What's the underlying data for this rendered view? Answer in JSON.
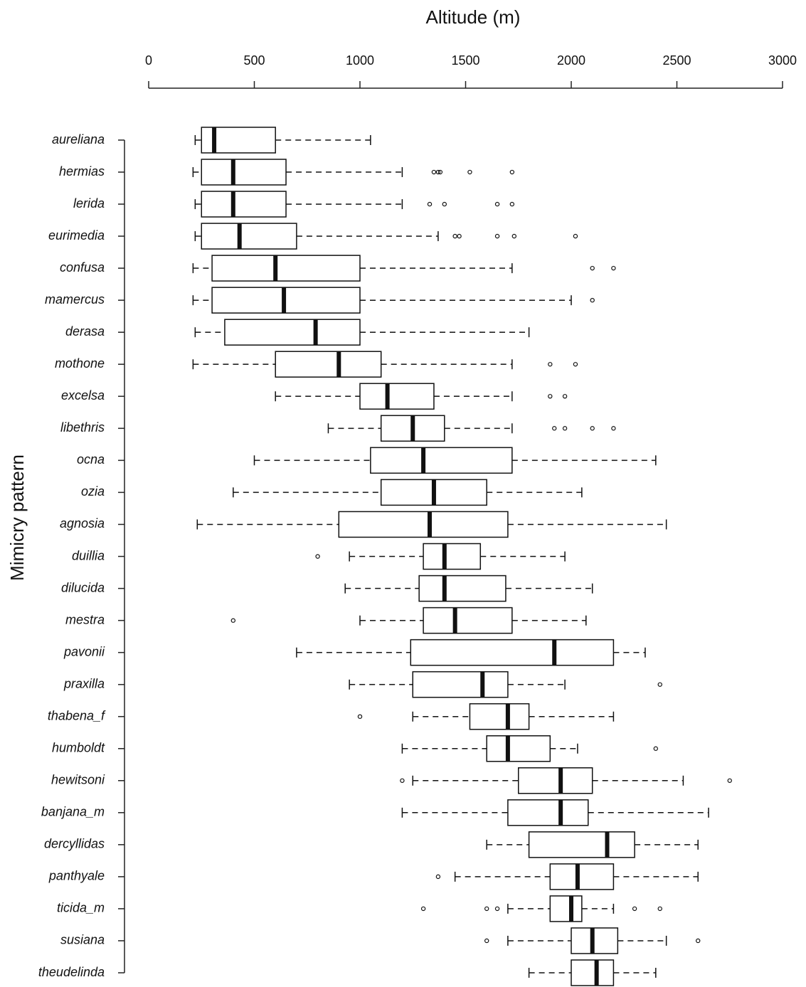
{
  "chart_data": {
    "type": "boxplot",
    "xlabel": "Altitude (m)",
    "ylabel": "Mimicry pattern",
    "xlim": [
      0,
      3000
    ],
    "xticks": [
      0,
      500,
      1000,
      1500,
      2000,
      2500,
      3000
    ],
    "categories": [
      "aureliana",
      "hermias",
      "lerida",
      "eurimedia",
      "confusa",
      "mamercus",
      "derasa",
      "mothone",
      "excelsa",
      "libethris",
      "ocna",
      "ozia",
      "agnosia",
      "duillia",
      "dilucida",
      "mestra",
      "pavonii",
      "praxilla",
      "thabena_f",
      "humboldt",
      "hewitsoni",
      "banjana_m",
      "dercyllidas",
      "panthyale",
      "ticida_m",
      "susiana",
      "theudelinda"
    ],
    "boxes": [
      {
        "low": 220,
        "q1": 250,
        "median": 310,
        "q3": 600,
        "high": 1050,
        "outliers": []
      },
      {
        "low": 210,
        "q1": 250,
        "median": 400,
        "q3": 650,
        "high": 1200,
        "outliers": [
          1350,
          1370,
          1380,
          1520,
          1720
        ]
      },
      {
        "low": 220,
        "q1": 250,
        "median": 400,
        "q3": 650,
        "high": 1200,
        "outliers": [
          1330,
          1400,
          1650,
          1720
        ]
      },
      {
        "low": 220,
        "q1": 250,
        "median": 430,
        "q3": 700,
        "high": 1370,
        "outliers": [
          1450,
          1470,
          1650,
          1730,
          2020
        ]
      },
      {
        "low": 210,
        "q1": 300,
        "median": 600,
        "q3": 1000,
        "high": 1720,
        "outliers": [
          2100,
          2200
        ]
      },
      {
        "low": 210,
        "q1": 300,
        "median": 640,
        "q3": 1000,
        "high": 2000,
        "outliers": [
          2100
        ]
      },
      {
        "low": 220,
        "q1": 360,
        "median": 790,
        "q3": 1000,
        "high": 1800,
        "outliers": []
      },
      {
        "low": 210,
        "q1": 600,
        "median": 900,
        "q3": 1100,
        "high": 1720,
        "outliers": [
          1900,
          2020
        ]
      },
      {
        "low": 600,
        "q1": 1000,
        "median": 1130,
        "q3": 1350,
        "high": 1720,
        "outliers": [
          1900,
          1970
        ]
      },
      {
        "low": 850,
        "q1": 1100,
        "median": 1250,
        "q3": 1400,
        "high": 1720,
        "outliers": [
          1920,
          1970,
          2100,
          2200
        ]
      },
      {
        "low": 500,
        "q1": 1050,
        "median": 1300,
        "q3": 1720,
        "high": 2400,
        "outliers": []
      },
      {
        "low": 400,
        "q1": 1100,
        "median": 1350,
        "q3": 1600,
        "high": 2050,
        "outliers": []
      },
      {
        "low": 230,
        "q1": 900,
        "median": 1330,
        "q3": 1700,
        "high": 2450,
        "outliers": []
      },
      {
        "low": 950,
        "q1": 1300,
        "median": 1400,
        "q3": 1570,
        "high": 1970,
        "outliers": [
          800
        ]
      },
      {
        "low": 930,
        "q1": 1280,
        "median": 1400,
        "q3": 1690,
        "high": 2100,
        "outliers": []
      },
      {
        "low": 1000,
        "q1": 1300,
        "median": 1450,
        "q3": 1720,
        "high": 2070,
        "outliers": [
          400
        ]
      },
      {
        "low": 700,
        "q1": 1240,
        "median": 1920,
        "q3": 2200,
        "high": 2350,
        "outliers": []
      },
      {
        "low": 950,
        "q1": 1250,
        "median": 1580,
        "q3": 1700,
        "high": 1970,
        "outliers": [
          2420
        ]
      },
      {
        "low": 1250,
        "q1": 1520,
        "median": 1700,
        "q3": 1800,
        "high": 2200,
        "outliers": [
          1000
        ]
      },
      {
        "low": 1200,
        "q1": 1600,
        "median": 1700,
        "q3": 1900,
        "high": 2030,
        "outliers": [
          2400
        ]
      },
      {
        "low": 1250,
        "q1": 1750,
        "median": 1950,
        "q3": 2100,
        "high": 2530,
        "outliers": [
          1200,
          2750
        ]
      },
      {
        "low": 1200,
        "q1": 1700,
        "median": 1950,
        "q3": 2080,
        "high": 2650,
        "outliers": []
      },
      {
        "low": 1600,
        "q1": 1800,
        "median": 2170,
        "q3": 2300,
        "high": 2600,
        "outliers": []
      },
      {
        "low": 1450,
        "q1": 1900,
        "median": 2030,
        "q3": 2200,
        "high": 2600,
        "outliers": [
          1370
        ]
      },
      {
        "low": 1700,
        "q1": 1900,
        "median": 2000,
        "q3": 2050,
        "high": 2200,
        "outliers": [
          1300,
          1600,
          1650,
          2300,
          2420
        ]
      },
      {
        "low": 1700,
        "q1": 2000,
        "median": 2100,
        "q3": 2220,
        "high": 2450,
        "outliers": [
          1600,
          2600
        ]
      },
      {
        "low": 1800,
        "q1": 2000,
        "median": 2120,
        "q3": 2200,
        "high": 2400,
        "outliers": []
      }
    ]
  }
}
